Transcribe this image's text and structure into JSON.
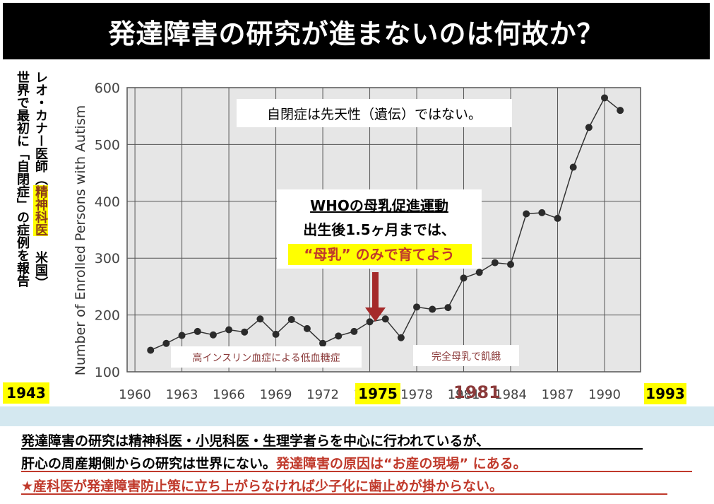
{
  "title": "発達障害の研究が進まないのは何故か？",
  "side": {
    "line1": "レオ・カナー医師（",
    "line1_hl": "精神科医",
    "line1_end": " 米国）",
    "line2": "世界で最初に「自閉症」の症例を報告"
  },
  "years": {
    "y1943": "1943",
    "y1975": "1975",
    "y1981": "1981",
    "y1993": "1993"
  },
  "annotations": {
    "genetic": "自閉症は先天性（遺伝）ではない。",
    "who_title": "WHOの母乳促進運動",
    "who_line2": "出生後1.5ヶ月までは、",
    "who_line3": "“母乳” のみで育てよう",
    "insulin": "高インスリン血症による低血糖症",
    "starvation": "完全母乳で飢餓"
  },
  "bottom": {
    "line1": "発達障害の研究は精神科医・小児科医・生理学者らを中心に行われているが、",
    "line2a": "肝心の周産期側からの研究は世界にない。",
    "line2b": "発達障害の原因は“お産の現場” にある。",
    "line3": "★産科医が発達障害防止策に立ち上がらなければ少子化に歯止めが掛からない。"
  },
  "colors": {
    "accent_red": "#c0392b",
    "highlight": "#ffff00",
    "arrow": "#a52a2a"
  },
  "chart_data": {
    "type": "line",
    "ylabel": "Number of Enrolled Persons with Autism",
    "xlabel": "",
    "ylim": [
      100,
      600
    ],
    "xlim": [
      1959.5,
      1992.3
    ],
    "x_ticks": [
      1960,
      1963,
      1966,
      1969,
      1972,
      1975,
      1978,
      1981,
      1984,
      1987,
      1990
    ],
    "y_ticks": [
      100,
      200,
      300,
      400,
      500,
      600
    ],
    "grid": true,
    "series": [
      {
        "x": [
          1961,
          1962,
          1963,
          1964,
          1965,
          1966,
          1967,
          1968,
          1969,
          1970,
          1971,
          1972,
          1973,
          1974,
          1975,
          1976,
          1977,
          1978,
          1979,
          1980,
          1981,
          1982,
          1983,
          1984,
          1985,
          1986,
          1987,
          1988,
          1989,
          1990,
          1991
        ],
        "y": [
          138,
          150,
          164,
          171,
          165,
          174,
          170,
          193,
          166,
          192,
          176,
          150,
          163,
          171,
          188,
          193,
          160,
          214,
          210,
          213,
          265,
          275,
          292,
          289,
          378,
          380,
          370,
          460,
          530,
          582,
          560
        ]
      }
    ]
  }
}
